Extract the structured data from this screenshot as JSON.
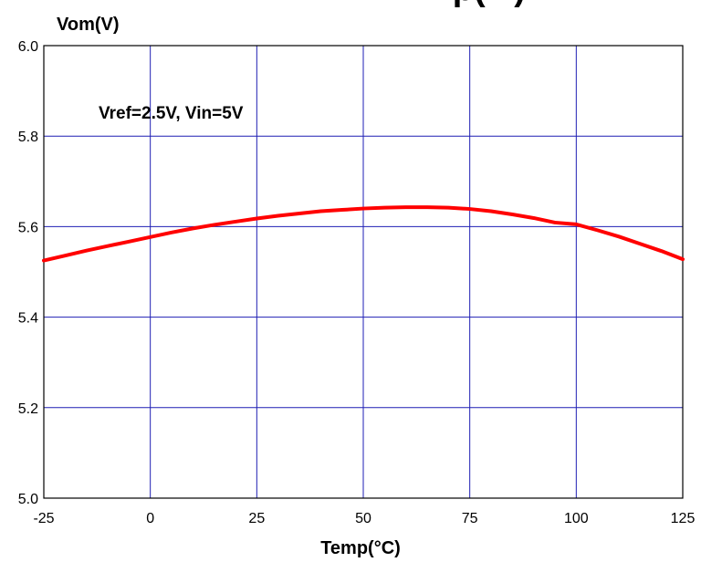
{
  "chart_data": {
    "type": "line",
    "title": "...p(...)",
    "ylabel": "Vom(V)",
    "xlabel": "Temp(°C)",
    "annotation": "Vref=2.5V, Vin=5V",
    "xlim": [
      -25,
      125
    ],
    "ylim": [
      5.0,
      6.0
    ],
    "xticks": [
      "-25",
      "0",
      "25",
      "50",
      "75",
      "100",
      "125"
    ],
    "yticks": [
      "5.0",
      "5.2",
      "5.4",
      "5.6",
      "5.8",
      "6.0"
    ],
    "grid": true,
    "series": [
      {
        "color": "#ff0000",
        "x": [
          -25,
          -20,
          -15,
          -10,
          -5,
          0,
          5,
          10,
          15,
          20,
          25,
          30,
          35,
          40,
          45,
          50,
          55,
          60,
          65,
          70,
          75,
          80,
          85,
          90,
          95,
          100,
          105,
          110,
          115,
          120,
          125
        ],
        "y": [
          5.525,
          5.536,
          5.547,
          5.557,
          5.567,
          5.577,
          5.587,
          5.596,
          5.604,
          5.611,
          5.618,
          5.624,
          5.629,
          5.634,
          5.637,
          5.64,
          5.642,
          5.643,
          5.643,
          5.642,
          5.639,
          5.634,
          5.627,
          5.619,
          5.609,
          5.605,
          5.592,
          5.578,
          5.562,
          5.546,
          5.528
        ]
      }
    ]
  },
  "colors": {
    "grid": "#1f1fb4",
    "axis": "#000000",
    "line": "#ff0000"
  }
}
